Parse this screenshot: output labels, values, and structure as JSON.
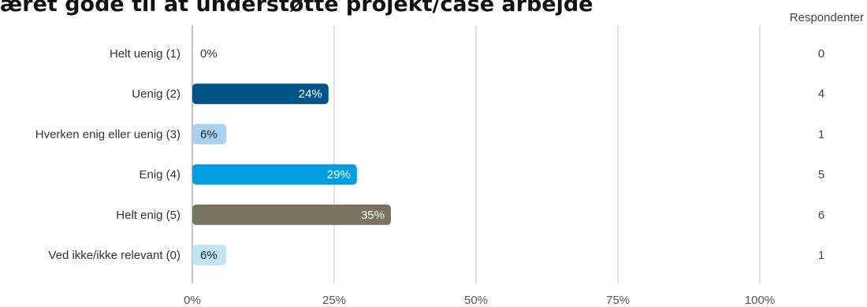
{
  "title": "æret gode til at understøtte projekt/case arbejde",
  "respondents_header": "Respondenter",
  "chart_data": {
    "type": "bar",
    "orientation": "horizontal",
    "title": "æret gode til at understøtte projekt/case arbejde",
    "categories": [
      "Helt uenig (1)",
      "Uenig (2)",
      "Hverken enig eller uenig (3)",
      "Enig (4)",
      "Helt enig (5)",
      "Ved ikke/ikke relevant (0)"
    ],
    "values": [
      0,
      24,
      6,
      29,
      35,
      6
    ],
    "data_labels": [
      "0%",
      "24%",
      "6%",
      "29%",
      "35%",
      "6%"
    ],
    "respondents": [
      "0",
      "4",
      "1",
      "5",
      "6",
      "1"
    ],
    "colors": [
      "#c9c9c9",
      "#00548a",
      "#a8d2f0",
      "#009ee0",
      "#787460",
      "#bfe4f7"
    ],
    "label_colors": [
      "#333333",
      "#ffffff",
      "#222222",
      "#ffffff",
      "#ffffff",
      "#222222"
    ],
    "xlim": [
      0,
      100
    ],
    "xticks": [
      0,
      25,
      50,
      75,
      100
    ],
    "xtick_labels": [
      "0%",
      "25%",
      "50%",
      "75%",
      "100%"
    ],
    "grid": true
  }
}
